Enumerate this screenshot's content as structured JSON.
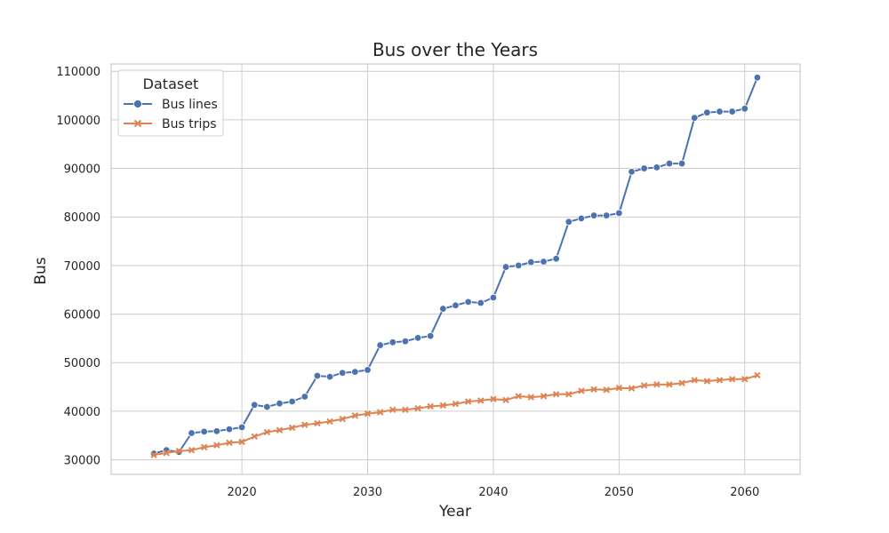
{
  "chart_data": {
    "type": "line",
    "title": "Bus over the Years",
    "xlabel": "Year",
    "ylabel": "Bus",
    "xlim": [
      2009.6,
      2064.4
    ],
    "ylim": [
      27000,
      111500
    ],
    "x_ticks": [
      2020,
      2030,
      2040,
      2050,
      2060
    ],
    "y_ticks": [
      30000,
      40000,
      50000,
      60000,
      70000,
      80000,
      90000,
      100000,
      110000
    ],
    "grid": true,
    "legend": {
      "title": "Dataset",
      "placement": "top-left"
    },
    "x": [
      2013,
      2014,
      2015,
      2016,
      2017,
      2018,
      2019,
      2020,
      2021,
      2022,
      2023,
      2024,
      2025,
      2026,
      2027,
      2028,
      2029,
      2030,
      2031,
      2032,
      2033,
      2034,
      2035,
      2036,
      2037,
      2038,
      2039,
      2040,
      2041,
      2042,
      2043,
      2044,
      2045,
      2046,
      2047,
      2048,
      2049,
      2050,
      2051,
      2052,
      2053,
      2054,
      2055,
      2056,
      2057,
      2058,
      2059,
      2060,
      2061
    ],
    "series": [
      {
        "name": "Bus lines",
        "color": "#4c72b0",
        "marker": "circle",
        "values": [
          31300,
          32000,
          31600,
          35500,
          35800,
          35900,
          36300,
          36700,
          41300,
          40900,
          41600,
          42000,
          43000,
          47300,
          47100,
          47900,
          48100,
          48500,
          53600,
          54200,
          54400,
          55100,
          55500,
          61100,
          61800,
          62500,
          62300,
          63400,
          69700,
          70000,
          70700,
          70800,
          71400,
          79000,
          79700,
          80300,
          80300,
          80800,
          89300,
          90000,
          90200,
          91000,
          91000,
          100400,
          101500,
          101700,
          101700,
          102300,
          108700
        ]
      },
      {
        "name": "Bus trips",
        "color": "#dd8452",
        "marker": "x",
        "values": [
          31000,
          31400,
          31800,
          32000,
          32600,
          33000,
          33500,
          33700,
          34800,
          35700,
          36100,
          36600,
          37200,
          37500,
          37900,
          38400,
          39100,
          39500,
          39800,
          40300,
          40300,
          40600,
          41000,
          41200,
          41500,
          42000,
          42200,
          42500,
          42300,
          43100,
          42900,
          43100,
          43500,
          43500,
          44200,
          44500,
          44400,
          44800,
          44700,
          45300,
          45500,
          45500,
          45800,
          46400,
          46200,
          46400,
          46600,
          46600,
          47400
        ]
      }
    ]
  }
}
